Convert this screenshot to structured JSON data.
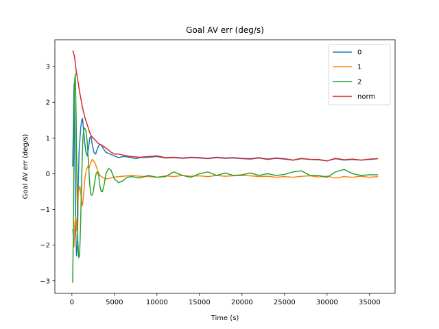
{
  "chart_data": {
    "type": "line",
    "title": "Goal AV err (deg/s)",
    "xlabel": "Time (s)",
    "ylabel": "Goal AV err (deg/s)",
    "xlim": [
      -2000,
      38000
    ],
    "ylim": [
      -3.35,
      3.75
    ],
    "xticks": [
      0,
      5000,
      10000,
      15000,
      20000,
      25000,
      30000,
      35000
    ],
    "yticks": [
      -3,
      -2,
      -1,
      0,
      1,
      2,
      3
    ],
    "grid": false,
    "legend_position": "top-right",
    "series": [
      {
        "name": "0",
        "color": "#1f77b4",
        "x": [
          100,
          250,
          350,
          450,
          550,
          650,
          750,
          850,
          950,
          1050,
          1150,
          1250,
          1350,
          1500,
          1650,
          1800,
          1950,
          2100,
          2250,
          2400,
          2600,
          2800,
          3000,
          3200,
          3400,
          3700,
          4000,
          4500,
          5000,
          5500,
          6000,
          6500,
          7000,
          7500,
          8000,
          9000,
          10000,
          11000,
          12000,
          13000,
          14000,
          15000,
          16000,
          17000,
          18000,
          19000,
          20000,
          21000,
          22000,
          23000,
          24000,
          25000,
          26000,
          27000,
          28000,
          29000,
          30000,
          31000,
          32000,
          33000,
          34000,
          35000,
          36000
        ],
        "y": [
          0.2,
          2.5,
          1.3,
          -1.6,
          -2.3,
          -2.0,
          -0.3,
          0.6,
          1.0,
          1.3,
          1.5,
          1.55,
          1.3,
          0.9,
          0.6,
          0.5,
          0.7,
          1.0,
          1.05,
          0.8,
          0.6,
          0.55,
          0.7,
          0.8,
          0.82,
          0.7,
          0.6,
          0.55,
          0.5,
          0.45,
          0.48,
          0.47,
          0.45,
          0.42,
          0.45,
          0.46,
          0.48,
          0.44,
          0.45,
          0.43,
          0.45,
          0.44,
          0.42,
          0.45,
          0.43,
          0.44,
          0.42,
          0.41,
          0.44,
          0.4,
          0.43,
          0.41,
          0.38,
          0.42,
          0.4,
          0.39,
          0.36,
          0.42,
          0.38,
          0.4,
          0.38,
          0.4,
          0.42
        ]
      },
      {
        "name": "1",
        "color": "#ff7f0e",
        "x": [
          100,
          250,
          350,
          450,
          550,
          650,
          750,
          850,
          950,
          1050,
          1150,
          1250,
          1400,
          1550,
          1700,
          1850,
          2000,
          2200,
          2400,
          2600,
          2800,
          3000,
          3300,
          3600,
          4000,
          4500,
          5000,
          5500,
          6000,
          7000,
          8000,
          9000,
          10000,
          11000,
          12000,
          13000,
          14000,
          15000,
          16000,
          17000,
          18000,
          19000,
          20000,
          21000,
          22000,
          23000,
          24000,
          25000,
          26000,
          27000,
          28000,
          29000,
          30000,
          31000,
          32000,
          33000,
          34000,
          35000,
          36000
        ],
        "y": [
          -1.55,
          -2.05,
          -1.4,
          -1.2,
          -1.6,
          -1.1,
          -0.6,
          -0.4,
          -0.35,
          -0.55,
          -0.8,
          -0.9,
          -0.5,
          -0.1,
          0.1,
          0.2,
          0.15,
          0.3,
          0.4,
          0.35,
          0.25,
          0.1,
          -0.05,
          -0.1,
          -0.15,
          -0.12,
          -0.1,
          -0.08,
          -0.07,
          -0.05,
          -0.07,
          -0.08,
          -0.1,
          -0.06,
          -0.08,
          -0.05,
          -0.07,
          -0.06,
          -0.08,
          -0.05,
          -0.07,
          -0.06,
          -0.05,
          -0.06,
          -0.08,
          -0.07,
          -0.1,
          -0.08,
          -0.1,
          -0.07,
          -0.06,
          -0.09,
          -0.07,
          -0.12,
          -0.08,
          -0.1,
          -0.07,
          -0.1,
          -0.08
        ]
      },
      {
        "name": "2",
        "color": "#2ca02c",
        "x": [
          100,
          200,
          300,
          400,
          500,
          600,
          700,
          800,
          900,
          1000,
          1100,
          1200,
          1300,
          1400,
          1500,
          1650,
          1800,
          1950,
          2100,
          2250,
          2400,
          2550,
          2700,
          2850,
          3000,
          3150,
          3300,
          3450,
          3600,
          3800,
          4000,
          4300,
          4600,
          5000,
          5500,
          6000,
          6500,
          7000,
          8000,
          9000,
          10000,
          11000,
          12000,
          13000,
          14000,
          15000,
          16000,
          17000,
          18000,
          19000,
          20000,
          21000,
          22000,
          23000,
          24000,
          25000,
          26000,
          27000,
          28000,
          29000,
          30000,
          31000,
          32000,
          33000,
          34000,
          35000,
          36000
        ],
        "y": [
          -3.05,
          -1.0,
          2.5,
          2.8,
          1.6,
          -0.3,
          -1.9,
          -2.35,
          -2.3,
          -1.6,
          -0.7,
          0.3,
          1.0,
          1.25,
          1.28,
          1.2,
          0.9,
          0.3,
          -0.3,
          -0.6,
          -0.6,
          -0.45,
          -0.2,
          0.0,
          0.05,
          -0.05,
          -0.35,
          -0.5,
          -0.5,
          -0.3,
          0.0,
          0.15,
          0.1,
          -0.15,
          -0.25,
          -0.2,
          -0.1,
          -0.08,
          -0.12,
          -0.05,
          -0.1,
          -0.08,
          0.05,
          -0.05,
          -0.1,
          0.0,
          0.05,
          -0.05,
          0.02,
          -0.05,
          -0.03,
          0.02,
          -0.05,
          0.0,
          -0.05,
          -0.02,
          0.05,
          0.08,
          -0.05,
          -0.05,
          -0.1,
          0.05,
          0.12,
          0.0,
          -0.05,
          -0.03,
          -0.03
        ]
      },
      {
        "name": "norm",
        "color": "#d62728",
        "x": [
          100,
          300,
          500,
          700,
          900,
          1100,
          1300,
          1500,
          1700,
          1900,
          2100,
          2300,
          2500,
          2700,
          2900,
          3100,
          3300,
          3500,
          3800,
          4100,
          4500,
          5000,
          5500,
          6000,
          6500,
          7000,
          8000,
          9000,
          10000,
          11000,
          12000,
          13000,
          14000,
          15000,
          16000,
          17000,
          18000,
          19000,
          20000,
          21000,
          22000,
          23000,
          24000,
          25000,
          26000,
          27000,
          28000,
          29000,
          30000,
          31000,
          32000,
          33000,
          34000,
          35000,
          36000
        ],
        "y": [
          3.45,
          3.3,
          2.9,
          2.6,
          2.3,
          2.05,
          1.8,
          1.6,
          1.45,
          1.3,
          1.15,
          1.05,
          1.0,
          0.95,
          0.9,
          0.85,
          0.82,
          0.8,
          0.75,
          0.7,
          0.62,
          0.55,
          0.55,
          0.52,
          0.5,
          0.48,
          0.46,
          0.48,
          0.5,
          0.45,
          0.46,
          0.44,
          0.46,
          0.45,
          0.43,
          0.46,
          0.44,
          0.45,
          0.43,
          0.42,
          0.45,
          0.41,
          0.44,
          0.42,
          0.38,
          0.43,
          0.4,
          0.4,
          0.36,
          0.43,
          0.39,
          0.41,
          0.38,
          0.41,
          0.42
        ]
      }
    ]
  }
}
